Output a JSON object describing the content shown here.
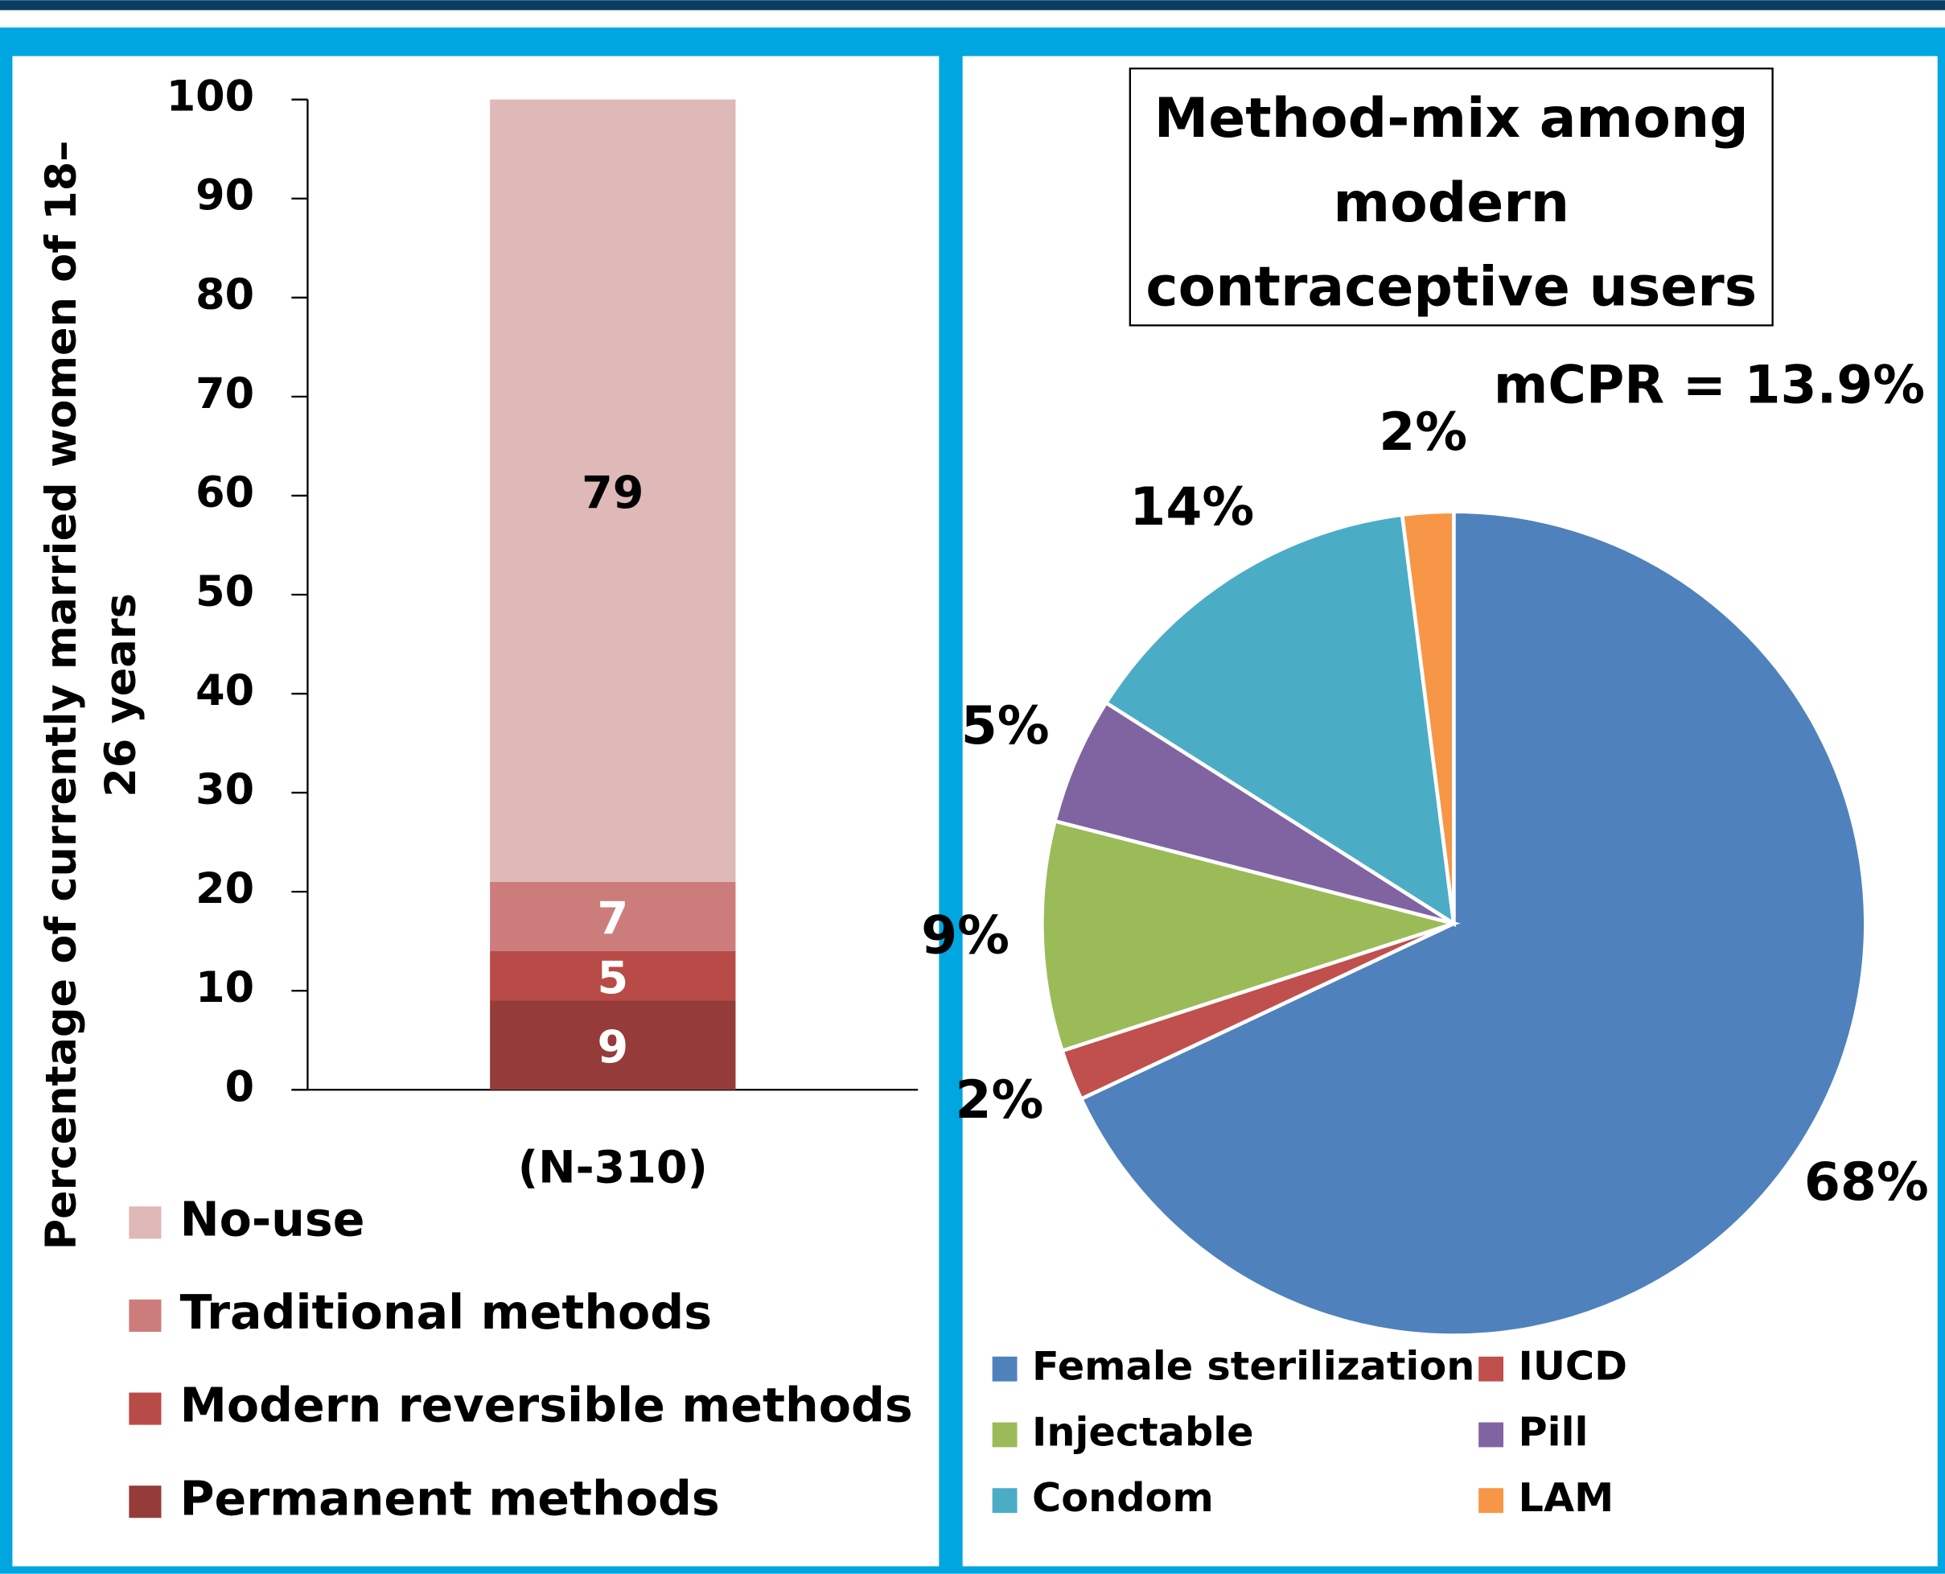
{
  "chart_data": [
    {
      "type": "bar",
      "stacked": true,
      "ylabel": "Percentage of currently married women of 18–26 years",
      "categories": [
        "(N-310)"
      ],
      "series": [
        {
          "name": "Permanent methods",
          "color": "#953b39",
          "values": [
            9
          ]
        },
        {
          "name": "Modern reversible methods",
          "color": "#b84b47",
          "values": [
            5
          ]
        },
        {
          "name": "Traditional methods",
          "color": "#cc7d7b",
          "values": [
            7
          ]
        },
        {
          "name": "No-use",
          "color": "#dfb8b8",
          "values": [
            79
          ]
        }
      ],
      "ylim": [
        0,
        100
      ],
      "yticks": [
        0,
        10,
        20,
        30,
        40,
        50,
        60,
        70,
        80,
        90,
        100
      ],
      "legend": "bottom-left"
    },
    {
      "type": "pie",
      "title": "Method-mix among modern contraceptive users",
      "annotation": "mCPR = 13.9%",
      "categories": [
        "Female sterilization",
        "IUCD",
        "Injectable",
        "Pill",
        "Condom",
        "LAM"
      ],
      "values": [
        68,
        2,
        9,
        5,
        14,
        2
      ],
      "value_labels": [
        "68%",
        "2%",
        "9%",
        "5%",
        "14%",
        "2%"
      ],
      "colors": [
        "#4f81bd",
        "#c0504d",
        "#9bbb59",
        "#8064a2",
        "#4bacc6",
        "#f79646"
      ],
      "legend": "bottom"
    }
  ]
}
